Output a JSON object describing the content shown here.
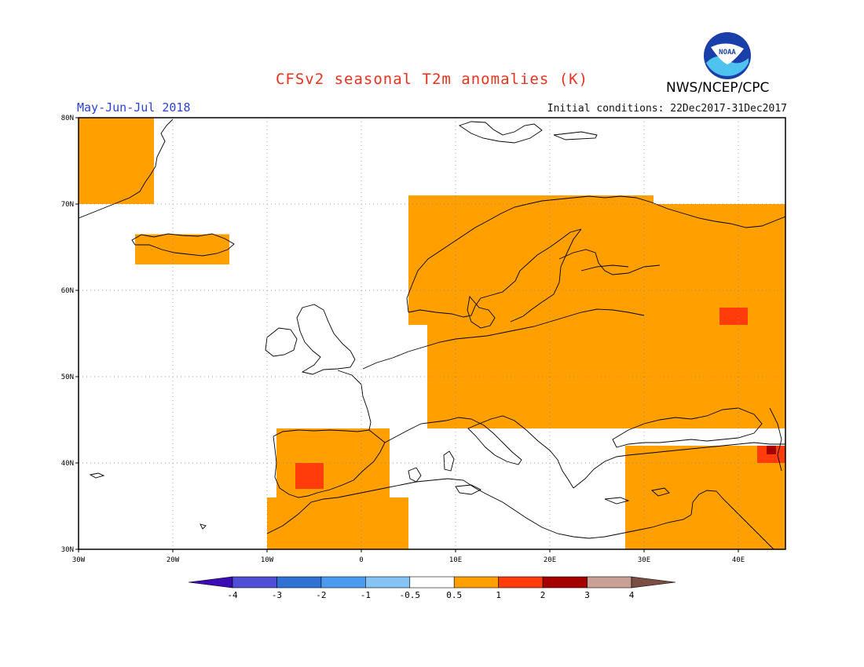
{
  "title": "CFSv2 seasonal T2m anomalies (K)",
  "org": "NWS/NCEP/CPC",
  "logo_text": "NOAA",
  "period": "May-Jun-Jul 2018",
  "initial_conditions": "Initial conditions: 22Dec2017-31Dec2017",
  "map": {
    "lon_range": [
      -30,
      45
    ],
    "lat_range": [
      30,
      80
    ],
    "lon_ticks": [
      {
        "value": -30,
        "label": "30W"
      },
      {
        "value": -20,
        "label": "20W"
      },
      {
        "value": -10,
        "label": "10W"
      },
      {
        "value": 0,
        "label": "0"
      },
      {
        "value": 10,
        "label": "10E"
      },
      {
        "value": 20,
        "label": "20E"
      },
      {
        "value": 30,
        "label": "30E"
      },
      {
        "value": 40,
        "label": "40E"
      }
    ],
    "lat_ticks": [
      {
        "value": 80,
        "label": "80N"
      },
      {
        "value": 70,
        "label": "70N"
      },
      {
        "value": 60,
        "label": "60N"
      },
      {
        "value": 50,
        "label": "50N"
      },
      {
        "value": 40,
        "label": "40N"
      },
      {
        "value": 30,
        "label": "30N"
      }
    ],
    "grid": "dotted"
  },
  "colorbar": {
    "labels": [
      "-4",
      "-3",
      "-2",
      "-1",
      "-0.5",
      "0.5",
      "1",
      "2",
      "3",
      "4"
    ],
    "colors": [
      "#3b0bb4",
      "#4e4ed6",
      "#2f72d3",
      "#4a9aef",
      "#85c3f5",
      "#ffffff",
      "#ffa000",
      "#ff3c0a",
      "#a50000",
      "#c8a096",
      "#7a4e44"
    ],
    "units": "K"
  },
  "colors": {
    "anom_0_5_1": "#ffa000",
    "anom_1_2": "#ff3c0a",
    "anom_2_3": "#a50000"
  },
  "anomaly_regions": [
    {
      "class": "0.5-1",
      "region": "Greenland east coast",
      "lon": [
        -30,
        -22
      ],
      "lat": [
        70,
        80
      ]
    },
    {
      "class": "0.5-1",
      "region": "Iceland",
      "lon": [
        -24,
        -14
      ],
      "lat": [
        63,
        66.5
      ]
    },
    {
      "class": "0.5-1",
      "region": "Scandinavia",
      "lon": [
        5,
        31
      ],
      "lat": [
        56,
        71
      ]
    },
    {
      "class": "0.5-1",
      "region": "Central and Eastern Europe",
      "lon": [
        7,
        45
      ],
      "lat": [
        44,
        58
      ]
    },
    {
      "class": "0.5-1",
      "region": "Western Russia",
      "lon": [
        30,
        45
      ],
      "lat": [
        50,
        70
      ]
    },
    {
      "class": "0.5-1",
      "region": "Iberia",
      "lon": [
        -9,
        3
      ],
      "lat": [
        36,
        44
      ]
    },
    {
      "class": "0.5-1",
      "region": "North Africa",
      "lon": [
        -10,
        5
      ],
      "lat": [
        30,
        36
      ]
    },
    {
      "class": "0.5-1",
      "region": "Turkey and Middle East",
      "lon": [
        28,
        45
      ],
      "lat": [
        30,
        42
      ]
    },
    {
      "class": "1-2",
      "region": "Southwest Iberia",
      "lon": [
        -7,
        -4
      ],
      "lat": [
        37,
        40
      ]
    },
    {
      "class": "1-2",
      "region": "Western Russia",
      "lon": [
        38,
        41
      ],
      "lat": [
        56,
        58
      ]
    },
    {
      "class": "1-2",
      "region": "Caucasus",
      "lon": [
        42,
        45
      ],
      "lat": [
        40,
        42
      ]
    },
    {
      "class": "2-3",
      "region": "Caucasus",
      "lon": [
        43,
        44
      ],
      "lat": [
        41,
        42
      ]
    }
  ]
}
